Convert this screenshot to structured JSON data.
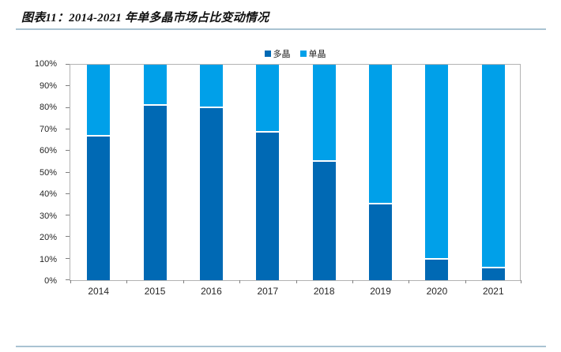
{
  "header": {
    "title": "图表11：2014-2021 年单多晶市场占比变动情况"
  },
  "chart_data": {
    "type": "bar",
    "stacked": true,
    "title": "图表11：2014-2021 年单多晶市场占比变动情况",
    "categories": [
      "2014",
      "2015",
      "2016",
      "2017",
      "2018",
      "2019",
      "2020",
      "2021"
    ],
    "series": [
      {
        "name": "多晶",
        "color": "#0069b4",
        "values": [
          66.5,
          81,
          80,
          68.5,
          55,
          35,
          9.5,
          5.5
        ]
      },
      {
        "name": "单晶",
        "color": "#00a0e9",
        "values": [
          33.5,
          19,
          20,
          31.5,
          45,
          65,
          90.5,
          94.5
        ]
      }
    ],
    "xlabel": "",
    "ylabel": "",
    "ylim": [
      0,
      100
    ],
    "y_tick_step": 10,
    "y_tick_labels": [
      "0%",
      "10%",
      "20%",
      "30%",
      "40%",
      "50%",
      "60%",
      "70%",
      "80%",
      "90%",
      "100%"
    ],
    "grid": false,
    "legend_position": "top-center",
    "units": "percent"
  },
  "colors": {
    "rule": "#a9c3d2",
    "frame": "#b3b3b3",
    "tick": "#7f7f7f",
    "segment_divider": "#ffffff"
  }
}
